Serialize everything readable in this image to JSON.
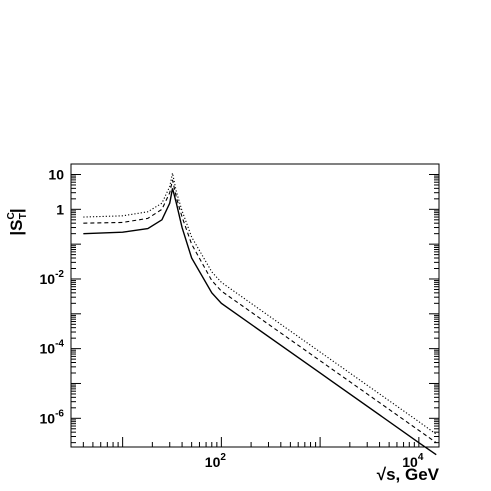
{
  "chart_data": {
    "type": "line",
    "xlabel": "√s, GeV",
    "ylabel": {
      "base": "|S",
      "sup": "C",
      "sub": "T",
      "close": "|"
    },
    "xscale": "log",
    "yscale": "log",
    "xlim": [
      3,
      16000
    ],
    "ylim": [
      1.5e-07,
      20
    ],
    "grid": false,
    "x_ticks": [
      {
        "value": 100,
        "base": "10",
        "exp": "2"
      },
      {
        "value": 10000,
        "base": "10",
        "exp": "4"
      }
    ],
    "y_ticks": [
      {
        "value": 10,
        "label": "10"
      },
      {
        "value": 1,
        "label": "1"
      },
      {
        "value": 0.01,
        "base": "10",
        "exp": "-2"
      },
      {
        "value": 0.0001,
        "base": "10",
        "exp": "-4"
      },
      {
        "value": 1e-06,
        "base": "10",
        "exp": "-6"
      }
    ],
    "series": [
      {
        "style": "solid",
        "x": [
          4,
          10,
          18,
          25,
          30,
          32,
          35,
          40,
          50,
          80,
          100,
          1000,
          10000,
          15000
        ],
        "y": [
          0.2,
          0.22,
          0.28,
          0.5,
          1.5,
          4,
          1.5,
          0.3,
          0.04,
          0.004,
          0.002,
          2e-05,
          2e-07,
          9e-08
        ]
      },
      {
        "style": "dashed",
        "x": [
          4,
          10,
          18,
          25,
          30,
          32,
          35,
          40,
          50,
          80,
          100,
          1000,
          10000,
          15000
        ],
        "y": [
          0.4,
          0.42,
          0.55,
          1.0,
          3,
          7,
          2.2,
          0.6,
          0.1,
          0.009,
          0.0045,
          4.5e-05,
          4.5e-07,
          2e-07
        ]
      },
      {
        "style": "dotted",
        "x": [
          4,
          10,
          18,
          25,
          30,
          32,
          35,
          40,
          50,
          80,
          100,
          1000,
          10000,
          15000
        ],
        "y": [
          0.6,
          0.65,
          0.85,
          1.5,
          4.5,
          11,
          3.2,
          0.9,
          0.16,
          0.016,
          0.008,
          8e-05,
          8e-07,
          3.5e-07
        ]
      }
    ]
  }
}
